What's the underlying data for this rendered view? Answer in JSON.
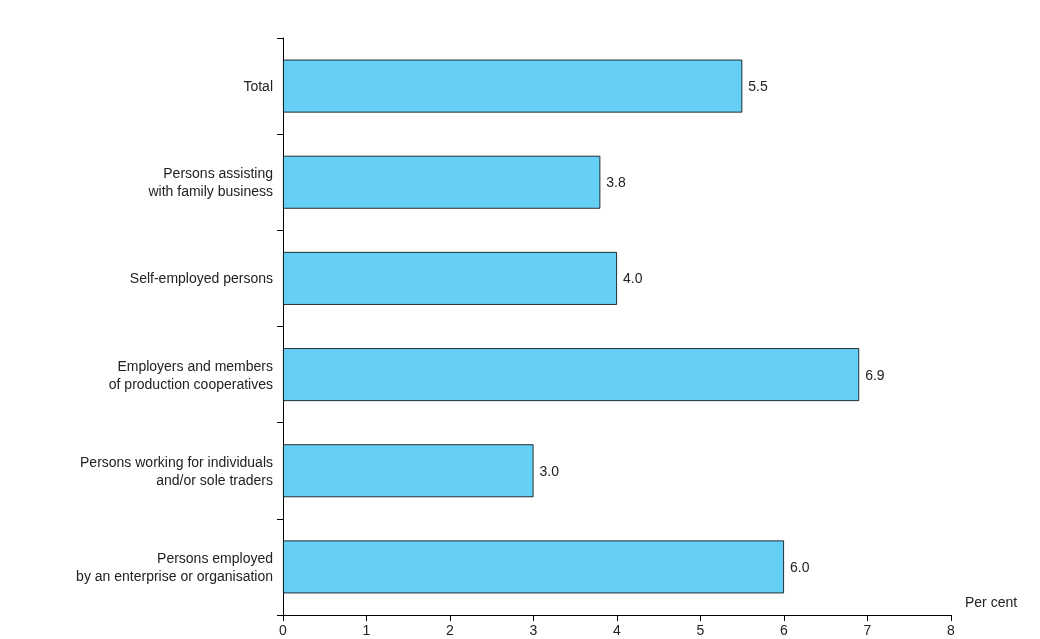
{
  "chart_data": {
    "type": "bar",
    "orientation": "horizontal",
    "xlabel": "Per cent",
    "categories": [
      "Total",
      "Persons assisting\nwith family business",
      "Self-employed persons",
      "Employers and members\nof production cooperatives",
      "Persons working for individuals\nand/or sole traders",
      "Persons employed\nby an enterprise or organisation"
    ],
    "values": [
      5.5,
      3.8,
      4.0,
      6.9,
      3.0,
      6.0
    ],
    "value_labels": [
      "5.5",
      "3.8",
      "4.0",
      "6.9",
      "3.0",
      "6.0"
    ],
    "color": "#66cff5",
    "xlim": [
      0,
      8
    ],
    "xticks": [
      0,
      1,
      2,
      3,
      4,
      5,
      6,
      7,
      8
    ],
    "grid": false
  }
}
